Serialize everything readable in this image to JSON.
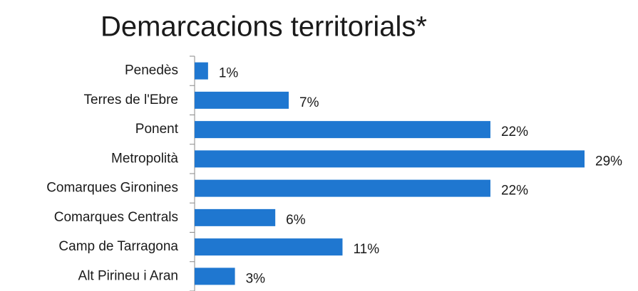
{
  "chart_data": {
    "type": "barh",
    "title": "Demarcacions territorials*",
    "categories": [
      "Penedès",
      "Terres de l'Ebre",
      "Ponent",
      "Metropolità",
      "Comarques Gironines",
      "Comarques Centrals",
      "Camp de Tarragona",
      "Alt Pirineu i Aran"
    ],
    "values": [
      1,
      7,
      22,
      29,
      22,
      6,
      11,
      3
    ],
    "value_labels": [
      "1%",
      "7%",
      "22%",
      "29%",
      "22%",
      "6%",
      "11%",
      "3%"
    ],
    "color": "#1f77d0"
  }
}
